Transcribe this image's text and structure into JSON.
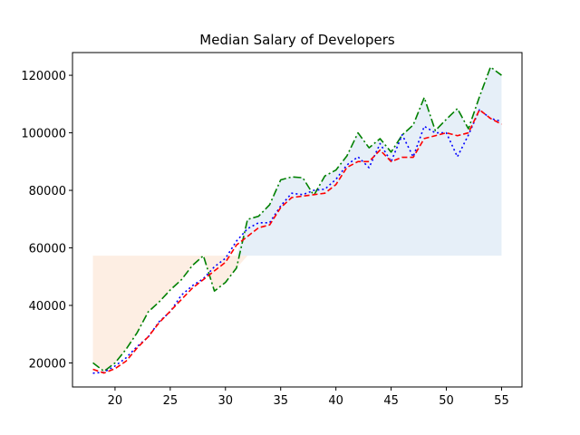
{
  "chart_data": {
    "type": "line",
    "title": "Median Salary of Developers",
    "xlabel": "",
    "ylabel": "",
    "xlim": [
      16.15,
      56.85
    ],
    "ylim": [
      11650,
      127900
    ],
    "xticks": [
      20,
      25,
      30,
      35,
      40,
      45,
      50,
      55
    ],
    "yticks": [
      20000,
      40000,
      60000,
      80000,
      100000,
      120000
    ],
    "grid": false,
    "legend": "none",
    "x": [
      18,
      19,
      20,
      21,
      22,
      23,
      24,
      25,
      26,
      27,
      28,
      29,
      30,
      31,
      32,
      33,
      34,
      35,
      36,
      37,
      38,
      39,
      40,
      41,
      42,
      43,
      44,
      45,
      46,
      47,
      48,
      49,
      50,
      51,
      52,
      53,
      54,
      55
    ],
    "fill_baseline": 57287,
    "fill_colors": {
      "below": "#fdeee3",
      "above": "#e6eff8"
    },
    "series": [
      {
        "style": "dash-dot",
        "color": "#008000",
        "values": [
          20046,
          17100,
          20000,
          24744,
          30500,
          37732,
          41247,
          45372,
          48876,
          53850,
          57287,
          45000,
          48000,
          53000,
          69902,
          71000,
          75000,
          83640,
          84666,
          84392,
          78254,
          85000,
          87038,
          91991,
          100000,
          94796,
          97962,
          93302,
          99240,
          102736,
          112285,
          100771,
          104708,
          108423,
          101407,
          112542,
          122870,
          120000
        ]
      },
      {
        "style": "dotted",
        "color": "#0000ff",
        "values": [
          16446,
          16791,
          18942,
          21780,
          25704,
          29000,
          34372,
          37810,
          43515,
          46823,
          49293,
          53437,
          56373,
          62375,
          66674,
          68745,
          68746,
          74583,
          79000,
          78508,
          79996,
          80403,
          83820,
          88833,
          91660,
          87892,
          96243,
          90000,
          99313,
          91660,
          102264,
          100000,
          100000,
          91660,
          99240,
          108000,
          105000,
          104000
        ]
      },
      {
        "style": "dashed",
        "color": "#ff0000",
        "values": [
          17784,
          16500,
          18012,
          20628,
          25206,
          29068,
          34002,
          38000,
          42000,
          46000,
          49000,
          52000,
          55000,
          61000,
          64000,
          67000,
          68000,
          74000,
          77500,
          78000,
          78500,
          79000,
          82000,
          88000,
          90000,
          90000,
          94000,
          90000,
          91500,
          91500,
          98000,
          99000,
          100000,
          99000,
          100000,
          108000,
          105000,
          103000
        ]
      }
    ]
  }
}
